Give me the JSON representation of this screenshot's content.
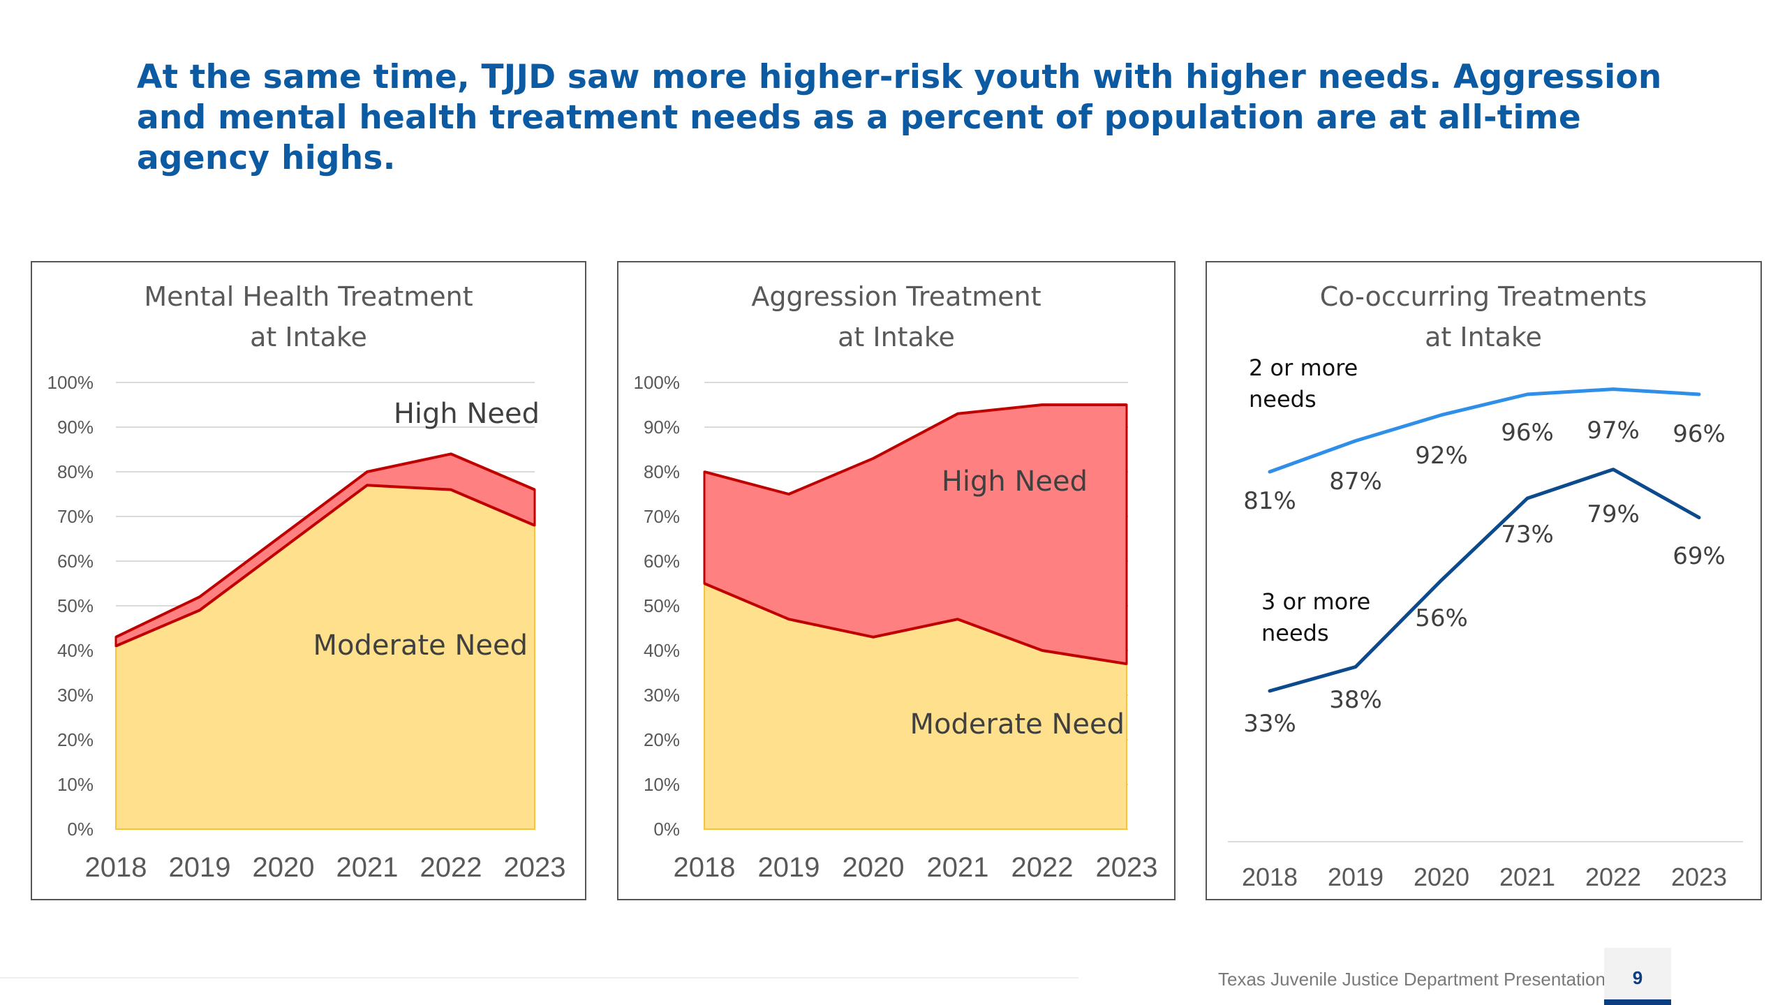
{
  "headline": "At the same time, TJJD saw more higher-risk youth with higher needs. Aggression and mental health treatment needs as a percent of population are at all-time agency highs.",
  "footer": {
    "text": "Texas Juvenile Justice Department Presentation",
    "page": "9"
  },
  "colors": {
    "headline": "#0b5aa2",
    "moderate_fill": "#ffe08c",
    "high_fill": "#ff8080",
    "high_line": "#c00000",
    "two_plus": "#2f8fe8",
    "three_plus": "#0b4a8c"
  },
  "chart_data": [
    {
      "type": "area",
      "title_lines": [
        "Mental Health Treatment",
        "at Intake"
      ],
      "categories": [
        "2018",
        "2019",
        "2020",
        "2021",
        "2022",
        "2023"
      ],
      "stacked": false,
      "series": [
        {
          "name": "Moderate Need",
          "values": [
            0.41,
            0.49,
            0.63,
            0.77,
            0.76,
            0.68
          ]
        },
        {
          "name": "High Need",
          "values": [
            0.43,
            0.52,
            0.66,
            0.8,
            0.84,
            0.76
          ]
        }
      ],
      "ylim": [
        0,
        1
      ],
      "yticks": [
        "0%",
        "10%",
        "20%",
        "30%",
        "40%",
        "50%",
        "60%",
        "70%",
        "80%",
        "90%",
        "100%"
      ],
      "grid": true,
      "legend": "inline labels"
    },
    {
      "type": "area",
      "title_lines": [
        "Aggression Treatment",
        "at Intake"
      ],
      "categories": [
        "2018",
        "2019",
        "2020",
        "2021",
        "2022",
        "2023"
      ],
      "stacked": false,
      "series": [
        {
          "name": "Moderate Need",
          "values": [
            0.55,
            0.47,
            0.43,
            0.47,
            0.4,
            0.37
          ]
        },
        {
          "name": "High Need",
          "values": [
            0.8,
            0.75,
            0.83,
            0.93,
            0.95,
            0.95
          ]
        }
      ],
      "ylim": [
        0,
        1
      ],
      "yticks": [
        "0%",
        "10%",
        "20%",
        "30%",
        "40%",
        "50%",
        "60%",
        "70%",
        "80%",
        "90%",
        "100%"
      ],
      "grid": true,
      "legend": "inline labels"
    },
    {
      "type": "line",
      "title_lines": [
        "Co-occurring Treatments",
        "at Intake"
      ],
      "categories": [
        "2018",
        "2019",
        "2020",
        "2021",
        "2022",
        "2023"
      ],
      "series": [
        {
          "name_lines": [
            "2 or more",
            "needs"
          ],
          "values": [
            81,
            87,
            92,
            96,
            97,
            96
          ],
          "labels": [
            "81%",
            "87%",
            "92%",
            "96%",
            "97%",
            "96%"
          ]
        },
        {
          "name_lines": [
            "3 or more",
            "needs"
          ],
          "values": [
            33,
            38,
            56,
            73,
            79,
            69
          ],
          "labels": [
            "33%",
            "38%",
            "56%",
            "73%",
            "79%",
            "69%"
          ]
        }
      ],
      "ylim": [
        0,
        100
      ],
      "grid": false,
      "legend": "inline labels"
    }
  ]
}
